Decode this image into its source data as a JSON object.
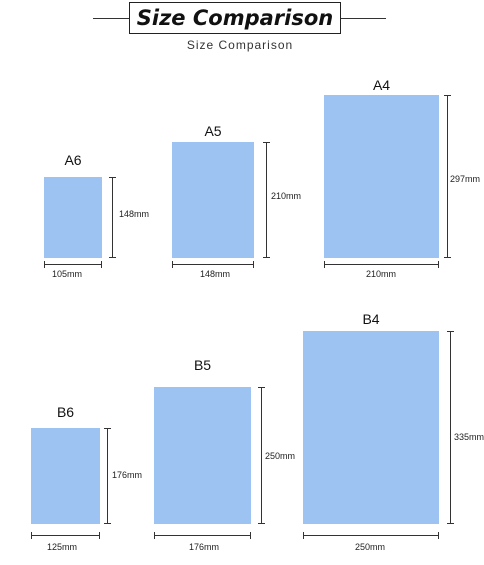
{
  "header": {
    "title": "Size Comparison",
    "subtitle": "Size Comparison"
  },
  "colors": {
    "sheet": "#9dc3f3",
    "lines": "#333333"
  },
  "sizes": [
    {
      "name": "A6",
      "width": "105mm",
      "height": "148mm"
    },
    {
      "name": "A5",
      "width": "148mm",
      "height": "210mm"
    },
    {
      "name": "A4",
      "width": "210mm",
      "height": "297mm"
    },
    {
      "name": "B6",
      "width": "125mm",
      "height": "176mm"
    },
    {
      "name": "B5",
      "width": "176mm",
      "height": "250mm"
    },
    {
      "name": "B4",
      "width": "250mm",
      "height": "335mm"
    }
  ]
}
